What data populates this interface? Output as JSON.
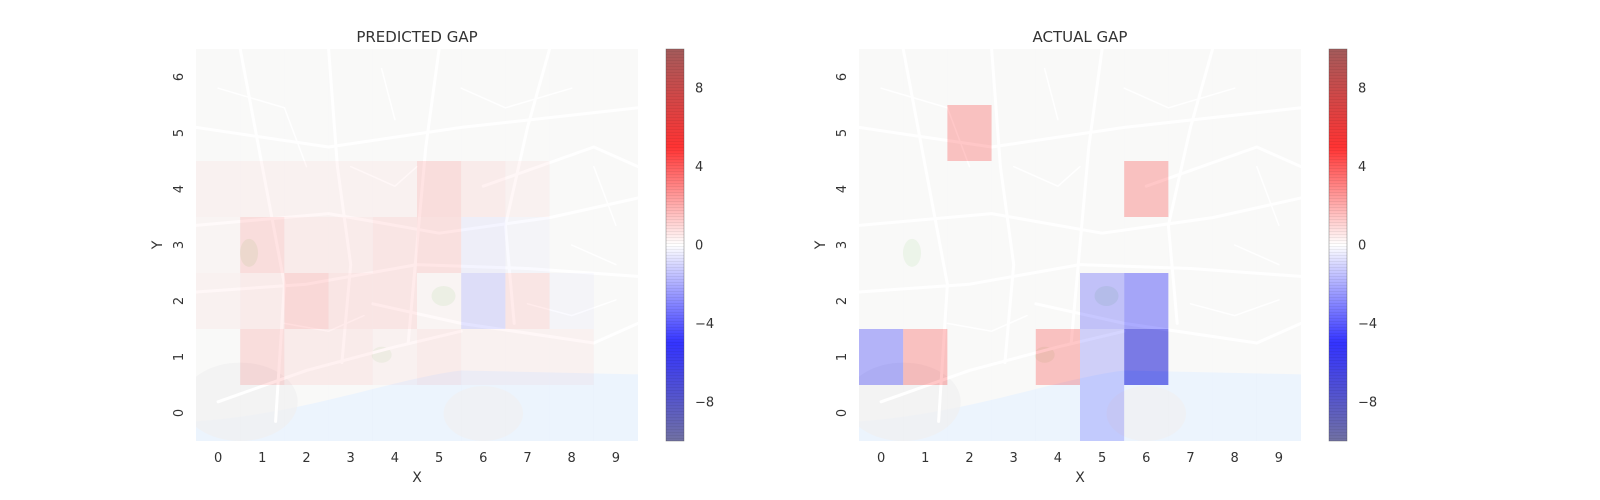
{
  "chart_data": [
    {
      "type": "heatmap",
      "title": "PREDICTED GAP",
      "xlabel": "X",
      "ylabel": "Y",
      "x": [
        0,
        1,
        2,
        3,
        4,
        5,
        6,
        7,
        8,
        9
      ],
      "y": [
        0,
        1,
        2,
        3,
        4,
        5,
        6
      ],
      "xlim": [
        -0.5,
        9.5
      ],
      "ylim": [
        -0.5,
        6.5
      ],
      "background": "street map",
      "colormap": "seismic",
      "clim": [
        -10,
        10
      ],
      "colorbar_ticks": [
        8,
        4,
        0,
        -4,
        -8
      ],
      "colorbar_tick_labels": [
        "8",
        "4",
        "0",
        "−4",
        "−8"
      ],
      "grid": false,
      "values": [
        [
          0,
          0,
          0,
          0,
          0,
          0,
          0,
          0,
          0,
          0
        ],
        [
          0,
          1.0,
          0.5,
          0.5,
          0.3,
          0.5,
          0.3,
          0.3,
          0.3,
          0
        ],
        [
          0.3,
          0.5,
          1.2,
          0.7,
          0.7,
          0.2,
          -1.0,
          0.7,
          -0.2,
          0
        ],
        [
          0.2,
          1.0,
          0.5,
          0.5,
          0.7,
          0.9,
          -0.4,
          -0.2,
          0,
          0
        ],
        [
          0.3,
          0.3,
          0.3,
          0.3,
          0.3,
          1.0,
          0.5,
          0.3,
          0,
          0
        ],
        [
          0,
          0,
          0,
          0,
          0,
          0,
          0,
          0,
          0,
          0
        ],
        [
          0,
          0,
          0,
          0,
          0,
          0,
          0,
          0,
          0,
          0
        ]
      ]
    },
    {
      "type": "heatmap",
      "title": "ACTUAL GAP",
      "xlabel": "X",
      "ylabel": "Y",
      "x": [
        0,
        1,
        2,
        3,
        4,
        5,
        6,
        7,
        8,
        9
      ],
      "y": [
        0,
        1,
        2,
        3,
        4,
        5,
        6
      ],
      "xlim": [
        -0.5,
        9.5
      ],
      "ylim": [
        -0.5,
        6.5
      ],
      "background": "street map",
      "colormap": "seismic",
      "clim": [
        -10,
        10
      ],
      "colorbar_ticks": [
        8,
        4,
        0,
        -4,
        -8
      ],
      "colorbar_tick_labels": [
        "8",
        "4",
        "0",
        "−4",
        "−8"
      ],
      "grid": false,
      "values": [
        [
          0,
          0,
          0,
          0,
          0,
          -1.5,
          0,
          0,
          0,
          0
        ],
        [
          -2.5,
          2.0,
          0,
          0,
          2.0,
          -1.5,
          -6.5,
          0,
          0,
          0
        ],
        [
          0,
          0,
          0,
          0,
          0,
          -2.0,
          -3.0,
          0,
          0,
          0
        ],
        [
          0,
          0,
          0,
          0,
          0,
          0,
          0,
          0,
          0,
          0
        ],
        [
          0,
          0,
          0,
          0,
          0,
          0,
          2.0,
          0,
          0,
          0
        ],
        [
          0,
          0,
          2.0,
          0,
          0,
          0,
          0,
          0,
          0,
          0
        ],
        [
          0,
          0,
          0,
          0,
          0,
          0,
          0,
          0,
          0,
          0
        ]
      ]
    }
  ]
}
